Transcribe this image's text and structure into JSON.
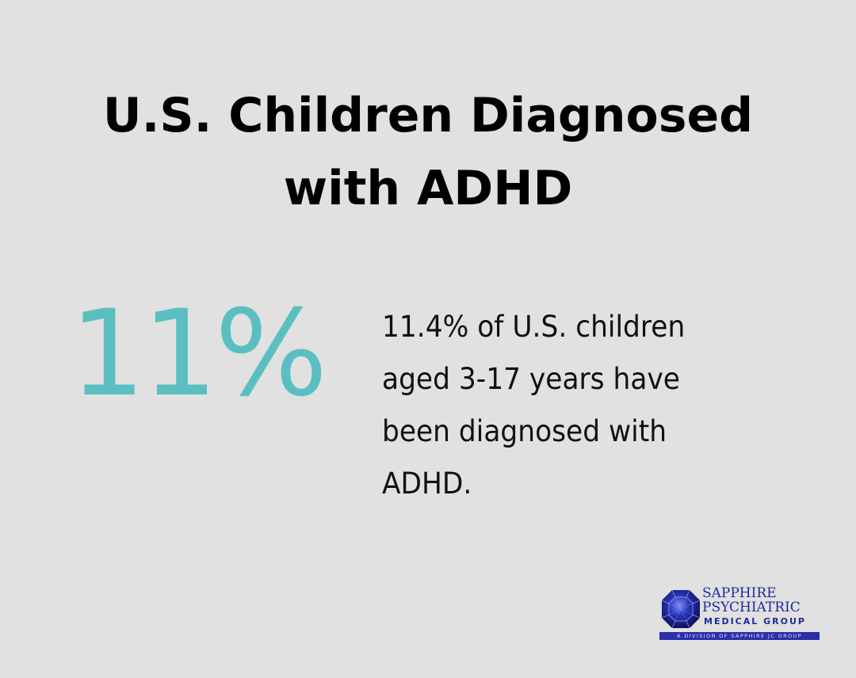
{
  "title_lines": [
    "U.S. Children Diagnosed",
    "with ADHD"
  ],
  "stat": {
    "value": "11%",
    "color": "#5bbfc2"
  },
  "description_lines": [
    "11.4% of U.S. children",
    "aged 3-17 years have",
    "been diagnosed with",
    "ADHD."
  ],
  "logo": {
    "line1": "SAPPHIRE",
    "line2": "PSYCHIATRIC",
    "line3": "MEDICAL GROUP",
    "tagline": "A DIVISION OF SAPPHIRE JC GROUP",
    "icon": "sapphire-gem-icon",
    "color": "#1f2a9c"
  },
  "background_color": "#e0e1e0"
}
